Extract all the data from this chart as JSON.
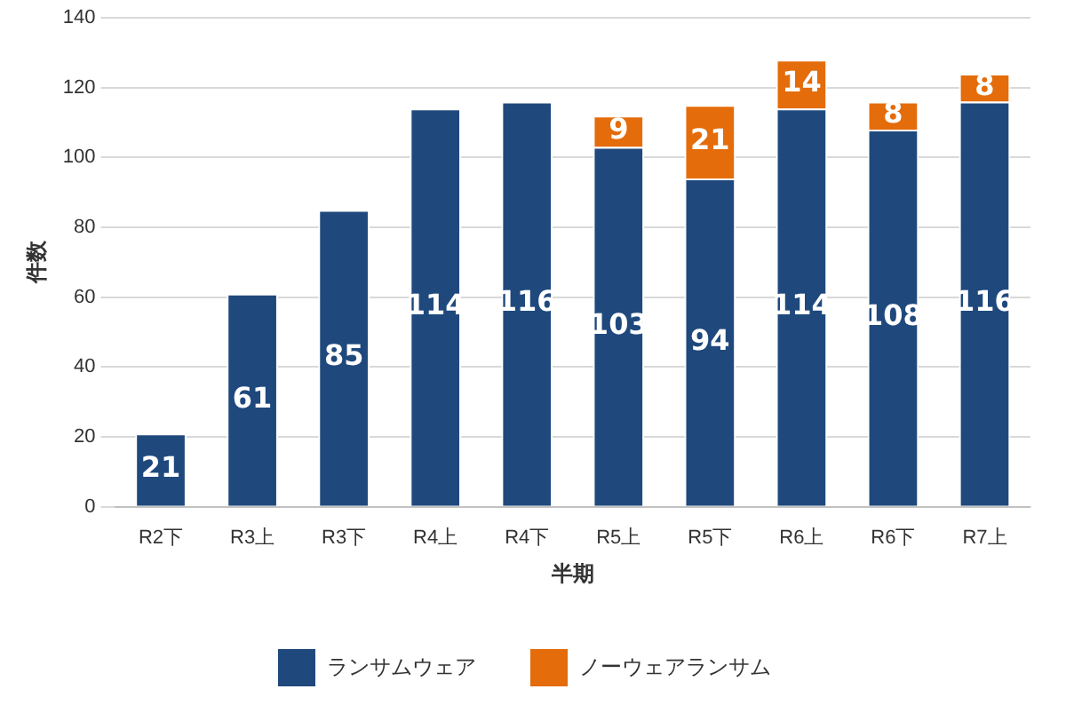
{
  "chart_data": {
    "type": "bar",
    "stacked": true,
    "xlabel": "半期",
    "ylabel": "件数",
    "categories": [
      "R2下",
      "R3上",
      "R3下",
      "R4上",
      "R4下",
      "R5上",
      "R5下",
      "R6上",
      "R6下",
      "R7上"
    ],
    "series": [
      {
        "name": "ランサムウェア",
        "color": "#1f497d",
        "values": [
          21,
          61,
          85,
          114,
          116,
          103,
          94,
          114,
          108,
          116
        ]
      },
      {
        "name": "ノーウェアランサム",
        "color": "#e46c0a",
        "values": [
          null,
          null,
          null,
          null,
          null,
          9,
          21,
          14,
          8,
          8
        ]
      }
    ],
    "ylim": [
      0,
      140
    ],
    "yticks": [
      0,
      20,
      40,
      60,
      80,
      100,
      120,
      140
    ],
    "grid": "y",
    "legend": "bottom",
    "data_labels": true
  }
}
